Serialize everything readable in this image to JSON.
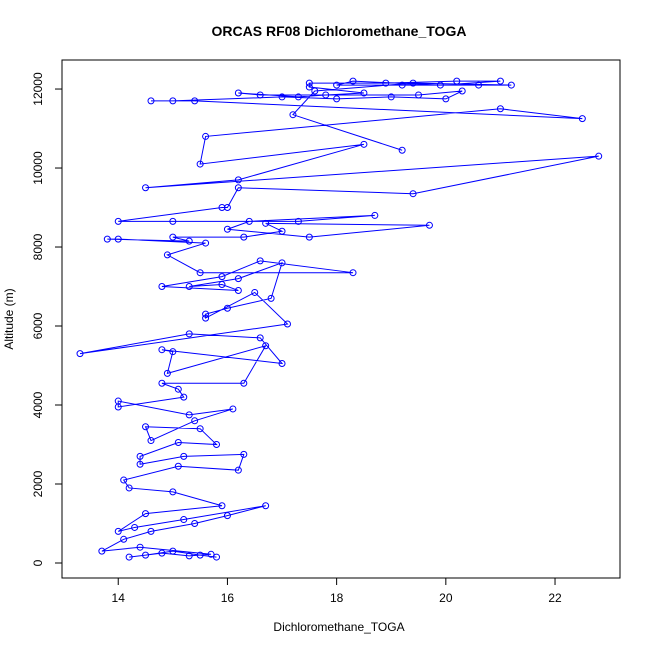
{
  "chart_data": {
    "type": "line",
    "title": "ORCAS RF08 Dichloromethane_TOGA",
    "x_label": "Dichloromethane_TOGA",
    "y_label": "Altitude (m)",
    "color": "#0000ff",
    "markers": true,
    "x": [
      15.8,
      15.5,
      15.0,
      14.5,
      14.2,
      14.8,
      15.3,
      15.7,
      14.4,
      13.7,
      14.1,
      14.6,
      15.4,
      16.0,
      16.7,
      15.2,
      14.3,
      14.0,
      14.5,
      15.9,
      15.0,
      14.2,
      14.1,
      15.1,
      16.2,
      16.3,
      15.2,
      14.4,
      14.4,
      15.1,
      15.8,
      15.5,
      14.5,
      14.6,
      15.4,
      16.1,
      15.3,
      14.0,
      14.0,
      15.2,
      15.1,
      14.8,
      16.3,
      16.7,
      14.9,
      15.0,
      14.8,
      17.0,
      16.6,
      15.3,
      13.3,
      17.1,
      16.5,
      15.6,
      15.6,
      16.0,
      16.8,
      17.0,
      16.2,
      15.3,
      15.9,
      16.2,
      14.8,
      15.9,
      16.6,
      18.3,
      15.5,
      14.9,
      15.6,
      14.0,
      13.8,
      15.3,
      15.0,
      16.3,
      17.0,
      16.7,
      19.7,
      17.5,
      16.0,
      16.4,
      18.7,
      17.3,
      15.0,
      14.0,
      15.9,
      16.0,
      16.2,
      19.4,
      22.8,
      14.5,
      16.2,
      18.5,
      15.5,
      15.6,
      21.0,
      22.5,
      15.4,
      14.6,
      15.0,
      17.0,
      18.0,
      19.0,
      20.0,
      20.3,
      19.5,
      16.6,
      16.2,
      17.3,
      17.8,
      18.5,
      17.5,
      17.5,
      18.9,
      20.2,
      21.0,
      19.9,
      18.3,
      18.0,
      19.2,
      20.6,
      21.2,
      19.4,
      17.6,
      17.2,
      19.2
    ],
    "values": [
      150,
      200,
      300,
      200,
      150,
      250,
      180,
      220,
      400,
      300,
      600,
      800,
      1000,
      1200,
      1450,
      1100,
      900,
      800,
      1250,
      1450,
      1800,
      1900,
      2100,
      2450,
      2350,
      2750,
      2700,
      2500,
      2700,
      3050,
      3000,
      3400,
      3450,
      3100,
      3600,
      3900,
      3750,
      4100,
      3950,
      4200,
      4400,
      4550,
      4550,
      5500,
      4800,
      5350,
      5400,
      5050,
      5700,
      5800,
      5300,
      6050,
      6850,
      6200,
      6300,
      6450,
      6700,
      7600,
      7200,
      7000,
      7050,
      6900,
      7000,
      7250,
      7650,
      7350,
      7350,
      7800,
      8100,
      8200,
      8200,
      8150,
      8250,
      8250,
      8400,
      8600,
      8550,
      8250,
      8450,
      8650,
      8800,
      8650,
      8650,
      8650,
      9000,
      9000,
      9500,
      9350,
      10300,
      9500,
      9700,
      10600,
      10100,
      10800,
      11500,
      11250,
      11700,
      11700,
      11700,
      11800,
      11750,
      11800,
      11750,
      11950,
      11850,
      11850,
      11900,
      11800,
      11850,
      11900,
      12050,
      12150,
      12150,
      12200,
      12200,
      12100,
      12200,
      12100,
      12100,
      12100,
      12100,
      12150,
      11950,
      11350,
      10450
    ],
    "xlim": [
      12.97,
      23.19
    ],
    "ylim": [
      -380,
      12735
    ],
    "xticks": [
      14,
      16,
      18,
      20,
      22
    ],
    "yticks": [
      0,
      2000,
      4000,
      6000,
      8000,
      10000,
      12000
    ]
  }
}
